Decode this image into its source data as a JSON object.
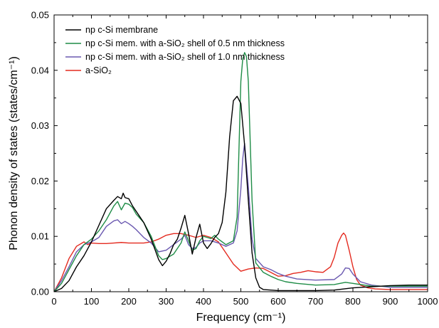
{
  "chart_data": {
    "type": "line",
    "title": "",
    "xlabel": "Frequency (cm⁻¹)",
    "ylabel": "Phonon density of states (states/cm⁻¹)",
    "xlim": [
      0,
      1000
    ],
    "ylim": [
      0,
      0.05
    ],
    "xticks": [
      "0",
      "100",
      "200",
      "300",
      "400",
      "500",
      "600",
      "700",
      "800",
      "900",
      "1000"
    ],
    "yticks": [
      "0.00",
      "0.01",
      "0.02",
      "0.03",
      "0.04",
      "0.05"
    ],
    "grid": false,
    "legend_position": "top-left",
    "series": [
      {
        "name": "np c-Si membrane",
        "color": "#000000",
        "x": [
          0,
          20,
          40,
          60,
          80,
          100,
          120,
          140,
          160,
          170,
          180,
          185,
          190,
          200,
          210,
          220,
          240,
          260,
          280,
          290,
          300,
          310,
          320,
          330,
          340,
          350,
          360,
          370,
          380,
          390,
          400,
          410,
          420,
          430,
          440,
          450,
          460,
          470,
          480,
          490,
          500,
          510,
          520,
          530,
          540,
          550,
          560,
          580,
          600,
          620,
          650,
          700,
          750,
          800,
          850,
          900,
          950,
          1000
        ],
        "y": [
          0.0,
          0.0006,
          0.002,
          0.0045,
          0.0065,
          0.009,
          0.012,
          0.015,
          0.0165,
          0.0172,
          0.0168,
          0.0178,
          0.017,
          0.0168,
          0.0155,
          0.0145,
          0.0125,
          0.0095,
          0.0058,
          0.0047,
          0.0055,
          0.0068,
          0.0085,
          0.0095,
          0.0115,
          0.0138,
          0.0105,
          0.0068,
          0.0098,
          0.0122,
          0.0088,
          0.0078,
          0.0087,
          0.0098,
          0.0105,
          0.0125,
          0.018,
          0.028,
          0.0345,
          0.0353,
          0.034,
          0.0265,
          0.0165,
          0.007,
          0.0025,
          0.0008,
          0.0004,
          0.0003,
          0.0002,
          0.0002,
          0.0002,
          0.0002,
          0.0003,
          0.0007,
          0.0009,
          0.0011,
          0.0012,
          0.0012
        ]
      },
      {
        "name": "np c-Si mem. with a-SiO₂ shell of 0.5 nm thickness",
        "color": "#1e8c46",
        "x": [
          0,
          20,
          40,
          60,
          80,
          100,
          120,
          140,
          160,
          170,
          180,
          190,
          200,
          210,
          220,
          240,
          260,
          280,
          290,
          300,
          320,
          340,
          350,
          360,
          370,
          380,
          390,
          400,
          410,
          420,
          430,
          440,
          460,
          480,
          490,
          500,
          505,
          510,
          515,
          520,
          530,
          540,
          560,
          580,
          600,
          620,
          650,
          700,
          750,
          780,
          800,
          850,
          900,
          950,
          1000
        ],
        "y": [
          0.0,
          0.0015,
          0.004,
          0.0065,
          0.0085,
          0.0095,
          0.011,
          0.013,
          0.0155,
          0.0163,
          0.0148,
          0.016,
          0.0158,
          0.0152,
          0.014,
          0.0125,
          0.01,
          0.0065,
          0.0058,
          0.006,
          0.0068,
          0.0088,
          0.0108,
          0.0092,
          0.0075,
          0.0078,
          0.0092,
          0.01,
          0.0098,
          0.0096,
          0.0102,
          0.0095,
          0.0085,
          0.0092,
          0.0135,
          0.038,
          0.042,
          0.0432,
          0.0425,
          0.038,
          0.0165,
          0.0052,
          0.0035,
          0.0028,
          0.0022,
          0.0018,
          0.0015,
          0.0012,
          0.0013,
          0.0017,
          0.0015,
          0.001,
          0.001,
          0.001,
          0.001
        ]
      },
      {
        "name": "np c-Si mem. with a-SiO₂ shell of 1.0 nm thickness",
        "color": "#6a58b0",
        "x": [
          0,
          20,
          40,
          60,
          80,
          100,
          120,
          140,
          160,
          170,
          180,
          190,
          200,
          210,
          220,
          240,
          260,
          280,
          300,
          320,
          340,
          350,
          360,
          370,
          380,
          390,
          400,
          420,
          440,
          460,
          480,
          490,
          500,
          505,
          510,
          520,
          530,
          540,
          560,
          580,
          600,
          620,
          650,
          700,
          750,
          770,
          780,
          790,
          800,
          820,
          850,
          900,
          950,
          1000
        ],
        "y": [
          0.0,
          0.002,
          0.0045,
          0.0072,
          0.0085,
          0.009,
          0.0098,
          0.0118,
          0.0128,
          0.013,
          0.0123,
          0.0127,
          0.0123,
          0.0118,
          0.0112,
          0.0098,
          0.0088,
          0.0072,
          0.0075,
          0.0085,
          0.0095,
          0.0102,
          0.0085,
          0.0078,
          0.008,
          0.0088,
          0.0092,
          0.0092,
          0.0088,
          0.0082,
          0.0088,
          0.011,
          0.0185,
          0.024,
          0.0268,
          0.019,
          0.0095,
          0.006,
          0.0045,
          0.004,
          0.0033,
          0.0028,
          0.0023,
          0.0021,
          0.0022,
          0.0032,
          0.0043,
          0.0042,
          0.0032,
          0.0018,
          0.0012,
          0.0008,
          0.0008,
          0.0008
        ]
      },
      {
        "name": "a-SiO₂",
        "color": "#e42a1f",
        "x": [
          0,
          20,
          40,
          60,
          80,
          90,
          100,
          120,
          140,
          160,
          180,
          200,
          220,
          240,
          260,
          280,
          300,
          320,
          340,
          360,
          380,
          400,
          420,
          440,
          460,
          480,
          500,
          520,
          540,
          560,
          580,
          600,
          620,
          640,
          660,
          680,
          700,
          720,
          740,
          750,
          760,
          770,
          775,
          780,
          790,
          800,
          810,
          820,
          840,
          860,
          900,
          950,
          1000
        ],
        "y": [
          0.0,
          0.0025,
          0.006,
          0.0082,
          0.009,
          0.0085,
          0.0088,
          0.0087,
          0.0087,
          0.0088,
          0.0089,
          0.0088,
          0.0088,
          0.0088,
          0.009,
          0.0095,
          0.0102,
          0.0105,
          0.0105,
          0.0102,
          0.0098,
          0.0102,
          0.0098,
          0.009,
          0.007,
          0.005,
          0.0037,
          0.0041,
          0.0043,
          0.0042,
          0.0035,
          0.0028,
          0.0029,
          0.0033,
          0.0035,
          0.0038,
          0.0036,
          0.0035,
          0.0045,
          0.0062,
          0.0088,
          0.0102,
          0.0106,
          0.0102,
          0.0075,
          0.0045,
          0.0022,
          0.0012,
          0.0007,
          0.0005,
          0.0004,
          0.0004,
          0.0004
        ]
      }
    ]
  }
}
